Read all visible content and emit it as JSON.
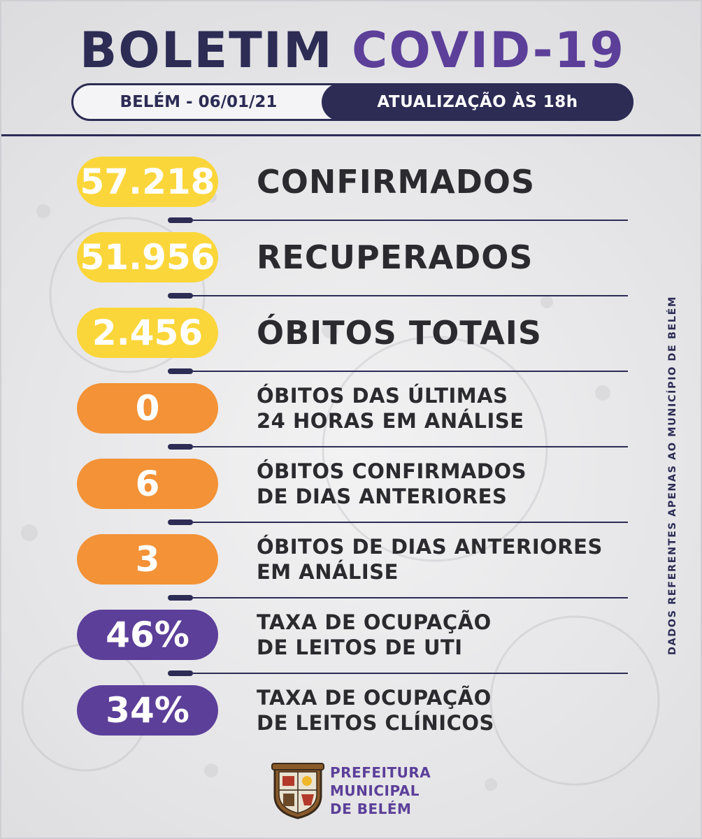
{
  "header": {
    "title_part1": "BOLETIM",
    "title_part2": "COVID-19",
    "location_date": "BELÉM - 06/01/21",
    "update_time": "ATUALIZAÇÃO ÀS  18h"
  },
  "stats": [
    {
      "value": "57.218",
      "label": "CONFIRMADOS",
      "color": "#fbd63a"
    },
    {
      "value": "51.956",
      "label": "RECUPERADOS",
      "color": "#fbd63a"
    },
    {
      "value": "2.456",
      "label": "ÓBITOS TOTAIS",
      "color": "#fbd63a"
    },
    {
      "value": "0",
      "label_line1": "ÓBITOS DAS ÚLTIMAS",
      "label_line2": "24 HORAS EM ANÁLISE",
      "color": "#f39236"
    },
    {
      "value": "6",
      "label_line1": "ÓBITOS CONFIRMADOS",
      "label_line2": "DE DIAS ANTERIORES",
      "color": "#f39236"
    },
    {
      "value": "3",
      "label_line1": "ÓBITOS DE DIAS ANTERIORES",
      "label_line2": "EM ANÁLISE",
      "color": "#f39236"
    },
    {
      "value": "46%",
      "label_line1": "TAXA DE OCUPAÇÃO",
      "label_line2": "DE LEITOS DE UTI",
      "color": "#5c3f99"
    },
    {
      "value": "34%",
      "label_line1": "TAXA DE OCUPAÇÃO",
      "label_line2": "DE LEITOS CLÍNICOS",
      "color": "#5c3f99"
    }
  ],
  "side_note": "DADOS REFERENTES APENAS AO MUNICÍPIO DE BELÉM",
  "footer": {
    "line1": "PREFEITURA",
    "line2": "MUNICIPAL",
    "line3": "DE BELÉM"
  },
  "colors": {
    "navy": "#2c2c55",
    "purple": "#5c3f99",
    "yellow": "#fbd63a",
    "orange": "#f39236"
  }
}
